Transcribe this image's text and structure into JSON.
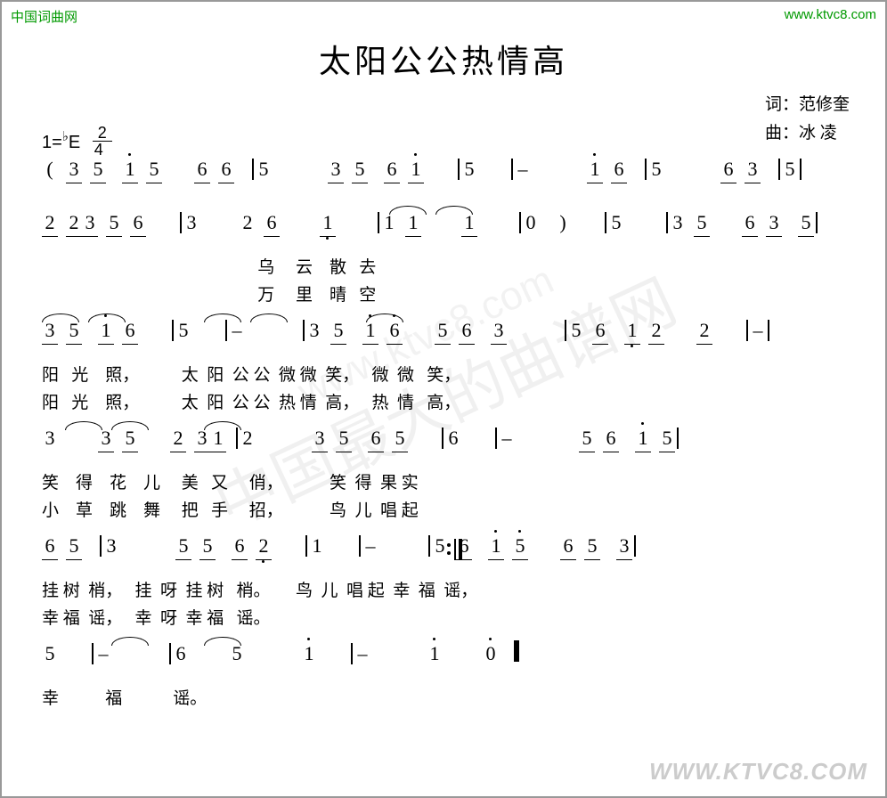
{
  "watermarks": {
    "left": "中国词曲网",
    "right": "www.ktvc8.com",
    "bottom": "WWW.KTVC8.COM",
    "center1": "中国最大的曲谱网",
    "center2": "www.ktvc8.com"
  },
  "title": "太阳公公热情高",
  "credits": {
    "lyricist": "词：范修奎",
    "composer": "曲：冰  凌"
  },
  "key": {
    "prefix": "1=",
    "flat": "♭",
    "note": "E",
    "time_n": "2",
    "time_d": "4"
  },
  "systems": [
    {
      "notes": "( 3 5  i 5    6 6  5       3 5  6 i    5    –       i 6  5       6 3  5",
      "beams": [
        [
          0,
          1
        ],
        [
          2,
          3
        ],
        [
          4,
          5
        ],
        [
          7,
          8
        ],
        [
          9,
          10
        ],
        [
          13,
          14
        ],
        [
          16,
          17
        ]
      ],
      "dots_h": [
        2,
        10,
        13
      ],
      "bars": [
        6,
        11,
        12,
        15,
        18
      ]
    },
    {
      "notes": "2 23 5 6    3     2 6     1     1 1     1     0  )    5     3 5    6 3  5",
      "beams": [
        [
          0,
          2
        ],
        [
          3,
          4
        ],
        [
          7,
          8
        ],
        [
          10,
          11
        ],
        [
          15,
          16
        ],
        [
          17,
          18
        ]
      ],
      "dots_l": [
        8
      ],
      "bars": [
        5,
        9,
        12,
        13,
        14,
        19
      ],
      "ties": [
        [
          15,
          16
        ],
        [
          17,
          18
        ]
      ],
      "lyr1": "                                                   乌     云    散   去",
      "lyr2": "                                                   万     里    晴   空"
    },
    {
      "notes": "3 5  i 6    5    –       3 5  i 6    5 6  3       5 6  1 2    2    –",
      "beams": [
        [
          0,
          1
        ],
        [
          2,
          3
        ],
        [
          7,
          8
        ],
        [
          9,
          10
        ],
        [
          11,
          12
        ],
        [
          14,
          15
        ],
        [
          16,
          17
        ]
      ],
      "dots_h": [
        2,
        9
      ],
      "dots_l": [
        15
      ],
      "bars": [
        4,
        5,
        6,
        13,
        18,
        19
      ],
      "ties": [
        [
          0,
          1
        ],
        [
          2,
          3
        ],
        [
          7,
          8
        ],
        [
          9,
          10
        ],
        [
          14,
          15
        ]
      ],
      "lyr1": "阳   光    照，          太  阳  公 公  微 微  笑，   微  微   笑，",
      "lyr2": "阳   光    照，          太  阳  公 公  热 情  高，   热  情   高，"
    },
    {
      "notes": "3     3 5    2 31 2       3 5  6 5    6    –        5 6  i 5",
      "beams": [
        [
          1,
          2
        ],
        [
          3,
          5
        ],
        [
          7,
          8
        ],
        [
          9,
          10
        ],
        [
          13,
          14
        ],
        [
          15,
          16
        ]
      ],
      "dots_h": [
        15
      ],
      "bars": [
        6,
        11,
        12,
        17
      ],
      "ties": [
        [
          1,
          2
        ],
        [
          3,
          5
        ],
        [
          7,
          8
        ]
      ],
      "lyr1": "笑    得    花    儿     美   又     俏，           笑  得  果 实",
      "lyr2": "小    草    跳    舞     把   手     招，           鸟  儿  唱 起"
    },
    {
      "notes": "6 5  3       5 5  6 2    1    –      5 6  i 5    6 5  3",
      "beams": [
        [
          0,
          1
        ],
        [
          3,
          4
        ],
        [
          5,
          6
        ],
        [
          10,
          11
        ],
        [
          12,
          13
        ],
        [
          14,
          15
        ]
      ],
      "dots_h": [
        12
      ],
      "dots_l": [
        6
      ],
      "bars": [
        2,
        7,
        8,
        9,
        16
      ],
      "repeat": 9,
      "lyr1": "挂 树  梢，   挂  呀  挂 树   梢。      鸟  儿  唱 起  幸  福  谣，",
      "lyr2": "幸 福  谣，   幸  呀  幸 福   谣。"
    },
    {
      "notes": "5    –       6     5       i    –       i     0",
      "dots_h": [
        7,
        9
      ],
      "bars": [
        1,
        2,
        5,
        8,
        11
      ],
      "final": 11,
      "ties": [
        [
          3,
          4
        ],
        [
          7,
          8
        ]
      ],
      "lyr1": "幸           福            谣。"
    }
  ],
  "colors": {
    "text": "#000000",
    "watermark": "#009900",
    "border": "#999999",
    "wm_gray": "rgba(0,0,0,0.06)"
  }
}
